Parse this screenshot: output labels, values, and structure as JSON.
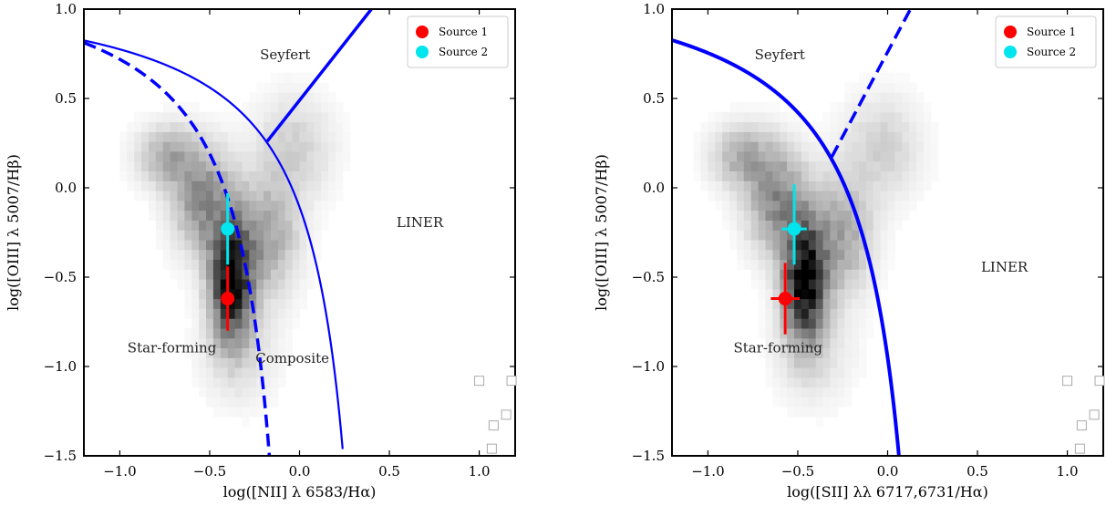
{
  "chart_data": [
    {
      "type": "scatter",
      "panel": "left",
      "xlabel": "log([NII] λ 6583/Hα)",
      "ylabel": "log([OIII] λ 5007/Hβ)",
      "xlim": [
        -1.2,
        1.2
      ],
      "ylim": [
        -1.5,
        1.0
      ],
      "x_ticks": [
        -1.0,
        -0.5,
        0.0,
        0.5,
        1.0
      ],
      "x_tick_labels": [
        "−1.0",
        "−0.5",
        "0.0",
        "0.5",
        "1.0"
      ],
      "y_ticks": [
        -1.5,
        -1.0,
        -0.5,
        0.0,
        0.5,
        1.0
      ],
      "y_tick_labels": [
        "−1.5",
        "−1.0",
        "−0.5",
        "0.0",
        "0.5",
        "1.0"
      ],
      "legend_placement": "top-right",
      "series": [
        {
          "name": "Source 1",
          "color": "#ff0000",
          "x": -0.4,
          "y": -0.62,
          "x_err": 0.02,
          "y_err_low": 0.18,
          "y_err_high": 0.18
        },
        {
          "name": "Source 2",
          "color": "#00e5ee",
          "x": -0.4,
          "y": -0.23,
          "x_err": 0.02,
          "y_err_low": 0.2,
          "y_err_high": 0.2
        }
      ],
      "curves": [
        {
          "name": "Kewley extreme starburst line",
          "style": "solid",
          "color": "#0000ff",
          "formula": "0.61/(x-0.47)+1.19",
          "x_range": [
            -1.2,
            0.24
          ]
        },
        {
          "name": "Kauffmann line",
          "style": "dashed",
          "color": "#0000ff",
          "formula": "0.61/(x-0.05)+1.3",
          "x_range": [
            -1.2,
            -0.14
          ]
        },
        {
          "name": "Seyfert-LINER line",
          "style": "solid",
          "color": "#0000ff",
          "x": [
            -0.18,
            0.4
          ],
          "y": [
            0.26,
            1.0
          ]
        }
      ],
      "region_labels": [
        {
          "text": "Seyfert",
          "x": -0.08,
          "y": 0.72
        },
        {
          "text": "LINER",
          "x": 0.67,
          "y": -0.22
        },
        {
          "text": "Star-forming",
          "x": -0.71,
          "y": -0.92
        },
        {
          "text": "Composite",
          "x": -0.04,
          "y": -0.98
        }
      ]
    },
    {
      "type": "scatter",
      "panel": "right",
      "xlabel": "log([SII] λλ 6717,6731/Hα)",
      "ylabel": "log([OIII] λ 5007/Hβ)",
      "xlim": [
        -1.2,
        1.2
      ],
      "ylim": [
        -1.5,
        1.0
      ],
      "x_ticks": [
        -1.0,
        -0.5,
        0.0,
        0.5,
        1.0
      ],
      "x_tick_labels": [
        "−1.0",
        "−0.5",
        "0.0",
        "0.5",
        "1.0"
      ],
      "y_ticks": [
        -1.5,
        -1.0,
        -0.5,
        0.0,
        0.5,
        1.0
      ],
      "y_tick_labels": [
        "−1.5",
        "−1.0",
        "−0.5",
        "0.0",
        "0.5",
        "1.0"
      ],
      "legend_placement": "top-right",
      "series": [
        {
          "name": "Source 1",
          "color": "#ff0000",
          "x": -0.57,
          "y": -0.62,
          "x_err": 0.08,
          "y_err_low": 0.2,
          "y_err_high": 0.2
        },
        {
          "name": "Source 2",
          "color": "#00e5ee",
          "x": -0.52,
          "y": -0.23,
          "x_err": 0.07,
          "y_err_low": 0.2,
          "y_err_high": 0.25
        }
      ],
      "curves": [
        {
          "name": "Kewley extreme starburst line",
          "style": "solid-thick",
          "color": "#0000ff",
          "formula": "0.72/(x-0.32)+1.30",
          "x_range": [
            -1.2,
            0.065
          ]
        },
        {
          "name": "Seyfert-LINER line",
          "style": "dashed",
          "color": "#0000ff",
          "formula": "1.89*x+0.76",
          "x_range": [
            -0.31,
            0.13
          ]
        }
      ],
      "region_labels": [
        {
          "text": "Seyfert",
          "x": -0.6,
          "y": 0.72
        },
        {
          "text": "LINER",
          "x": 0.65,
          "y": -0.47
        },
        {
          "text": "Star-forming",
          "x": -0.61,
          "y": -0.92
        }
      ]
    }
  ]
}
